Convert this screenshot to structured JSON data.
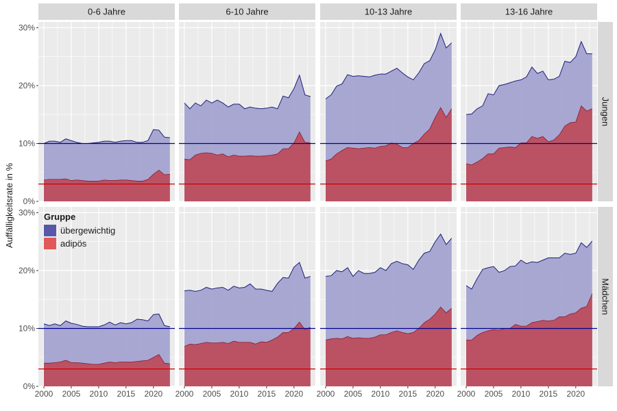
{
  "chart_data": {
    "type": "area",
    "ylabel": "Auffälligkeitsrate in %",
    "xlim": [
      1999,
      2023.9
    ],
    "ylim": [
      0,
      0.31
    ],
    "x_ticks": [
      2000,
      2005,
      2010,
      2015,
      2020
    ],
    "x_tick_labels": [
      "2000",
      "2005",
      "2010",
      "2015",
      "2020"
    ],
    "y_ticks": [
      0,
      0.1,
      0.2,
      0.3
    ],
    "y_tick_labels": [
      "0%",
      "10%",
      "20%",
      "30%"
    ],
    "reference_lines": [
      {
        "value": 0.1,
        "color": "#00008b"
      },
      {
        "value": 0.03,
        "color": "#cc0000"
      }
    ],
    "colors": {
      "uebergewichtig_fill": "#a3a3d1",
      "uebergewichtig_line": "#1e1e78",
      "adipoes_fill": "#bb4d5e",
      "adipoes_line": "#8b1a2a",
      "panel_bg": "#ebebeb",
      "strip_bg": "#d9d9d9",
      "grid": "#ffffff"
    },
    "legend": {
      "title": "Gruppe",
      "position": "inside-top-left",
      "items": [
        {
          "label": "übergewichtig",
          "color": "#5858a8"
        },
        {
          "label": "adipös",
          "color": "#e05858"
        }
      ]
    },
    "col_labels": [
      "0-6 Jahre",
      "6-10 Jahre",
      "10-13 Jahre",
      "13-16 Jahre"
    ],
    "row_labels": [
      "Jungen",
      "Mädchen"
    ],
    "x": [
      2000,
      2001,
      2002,
      2003,
      2004,
      2005,
      2006,
      2007,
      2008,
      2009,
      2010,
      2011,
      2012,
      2013,
      2014,
      2015,
      2016,
      2017,
      2018,
      2019,
      2020,
      2021,
      2022,
      2023
    ],
    "panels": [
      {
        "row": 0,
        "col": 0,
        "uebergewichtig": [
          0.1,
          0.104,
          0.104,
          0.102,
          0.108,
          0.105,
          0.102,
          0.1,
          0.1,
          0.101,
          0.102,
          0.104,
          0.104,
          0.102,
          0.104,
          0.105,
          0.105,
          0.102,
          0.102,
          0.105,
          0.124,
          0.123,
          0.111,
          0.11
        ],
        "adipoes": [
          0.037,
          0.038,
          0.038,
          0.038,
          0.039,
          0.036,
          0.037,
          0.036,
          0.035,
          0.035,
          0.035,
          0.037,
          0.036,
          0.036,
          0.037,
          0.037,
          0.036,
          0.035,
          0.035,
          0.038,
          0.047,
          0.054,
          0.046,
          0.047
        ]
      },
      {
        "row": 0,
        "col": 1,
        "uebergewichtig": [
          0.17,
          0.16,
          0.17,
          0.165,
          0.175,
          0.17,
          0.175,
          0.17,
          0.163,
          0.168,
          0.168,
          0.16,
          0.163,
          0.161,
          0.16,
          0.161,
          0.163,
          0.16,
          0.182,
          0.179,
          0.195,
          0.218,
          0.184,
          0.181
        ],
        "adipoes": [
          0.073,
          0.072,
          0.08,
          0.083,
          0.084,
          0.083,
          0.08,
          0.082,
          0.077,
          0.08,
          0.078,
          0.078,
          0.079,
          0.078,
          0.078,
          0.079,
          0.08,
          0.082,
          0.091,
          0.091,
          0.101,
          0.12,
          0.102,
          0.101
        ]
      },
      {
        "row": 0,
        "col": 2,
        "uebergewichtig": [
          0.177,
          0.184,
          0.199,
          0.203,
          0.219,
          0.216,
          0.217,
          0.216,
          0.215,
          0.218,
          0.22,
          0.22,
          0.225,
          0.23,
          0.222,
          0.215,
          0.21,
          0.222,
          0.238,
          0.243,
          0.262,
          0.29,
          0.265,
          0.274
        ],
        "adipoes": [
          0.07,
          0.073,
          0.082,
          0.088,
          0.093,
          0.092,
          0.091,
          0.092,
          0.093,
          0.092,
          0.095,
          0.096,
          0.101,
          0.099,
          0.093,
          0.093,
          0.1,
          0.105,
          0.116,
          0.125,
          0.145,
          0.162,
          0.145,
          0.16
        ]
      },
      {
        "row": 0,
        "col": 3,
        "uebergewichtig": [
          0.15,
          0.151,
          0.16,
          0.165,
          0.186,
          0.184,
          0.2,
          0.202,
          0.205,
          0.208,
          0.21,
          0.215,
          0.232,
          0.221,
          0.225,
          0.21,
          0.211,
          0.216,
          0.242,
          0.24,
          0.25,
          0.276,
          0.255,
          0.255
        ],
        "adipoes": [
          0.065,
          0.063,
          0.068,
          0.074,
          0.082,
          0.082,
          0.092,
          0.093,
          0.094,
          0.093,
          0.101,
          0.101,
          0.112,
          0.109,
          0.112,
          0.103,
          0.106,
          0.115,
          0.13,
          0.136,
          0.137,
          0.165,
          0.156,
          0.16
        ]
      },
      {
        "row": 1,
        "col": 0,
        "uebergewichtig": [
          0.108,
          0.105,
          0.108,
          0.105,
          0.113,
          0.109,
          0.107,
          0.104,
          0.103,
          0.103,
          0.103,
          0.106,
          0.111,
          0.106,
          0.11,
          0.108,
          0.11,
          0.116,
          0.115,
          0.113,
          0.124,
          0.125,
          0.105,
          0.103
        ],
        "adipoes": [
          0.04,
          0.04,
          0.041,
          0.042,
          0.045,
          0.041,
          0.041,
          0.04,
          0.039,
          0.038,
          0.038,
          0.04,
          0.042,
          0.041,
          0.042,
          0.042,
          0.042,
          0.043,
          0.044,
          0.045,
          0.05,
          0.055,
          0.04,
          0.039
        ]
      },
      {
        "row": 1,
        "col": 1,
        "uebergewichtig": [
          0.165,
          0.166,
          0.164,
          0.166,
          0.171,
          0.168,
          0.17,
          0.171,
          0.166,
          0.173,
          0.17,
          0.171,
          0.177,
          0.168,
          0.168,
          0.166,
          0.164,
          0.178,
          0.188,
          0.187,
          0.206,
          0.214,
          0.187,
          0.19
        ],
        "adipoes": [
          0.069,
          0.073,
          0.072,
          0.074,
          0.076,
          0.075,
          0.075,
          0.076,
          0.074,
          0.078,
          0.076,
          0.076,
          0.076,
          0.073,
          0.077,
          0.076,
          0.08,
          0.085,
          0.093,
          0.093,
          0.1,
          0.111,
          0.098,
          0.102
        ]
      },
      {
        "row": 1,
        "col": 2,
        "uebergewichtig": [
          0.19,
          0.191,
          0.2,
          0.198,
          0.205,
          0.19,
          0.2,
          0.195,
          0.195,
          0.197,
          0.205,
          0.2,
          0.212,
          0.216,
          0.212,
          0.21,
          0.202,
          0.218,
          0.23,
          0.233,
          0.25,
          0.263,
          0.245,
          0.256
        ],
        "adipoes": [
          0.08,
          0.082,
          0.083,
          0.082,
          0.086,
          0.083,
          0.084,
          0.083,
          0.083,
          0.085,
          0.089,
          0.089,
          0.093,
          0.096,
          0.093,
          0.091,
          0.093,
          0.1,
          0.11,
          0.116,
          0.125,
          0.137,
          0.127,
          0.135
        ]
      },
      {
        "row": 1,
        "col": 3,
        "uebergewichtig": [
          0.174,
          0.168,
          0.186,
          0.202,
          0.205,
          0.207,
          0.197,
          0.2,
          0.207,
          0.208,
          0.218,
          0.212,
          0.215,
          0.214,
          0.218,
          0.222,
          0.222,
          0.222,
          0.23,
          0.228,
          0.23,
          0.248,
          0.24,
          0.251
        ],
        "adipoes": [
          0.08,
          0.08,
          0.088,
          0.093,
          0.096,
          0.098,
          0.097,
          0.1,
          0.1,
          0.107,
          0.104,
          0.104,
          0.11,
          0.112,
          0.114,
          0.113,
          0.114,
          0.12,
          0.12,
          0.125,
          0.127,
          0.135,
          0.138,
          0.16
        ]
      }
    ]
  }
}
